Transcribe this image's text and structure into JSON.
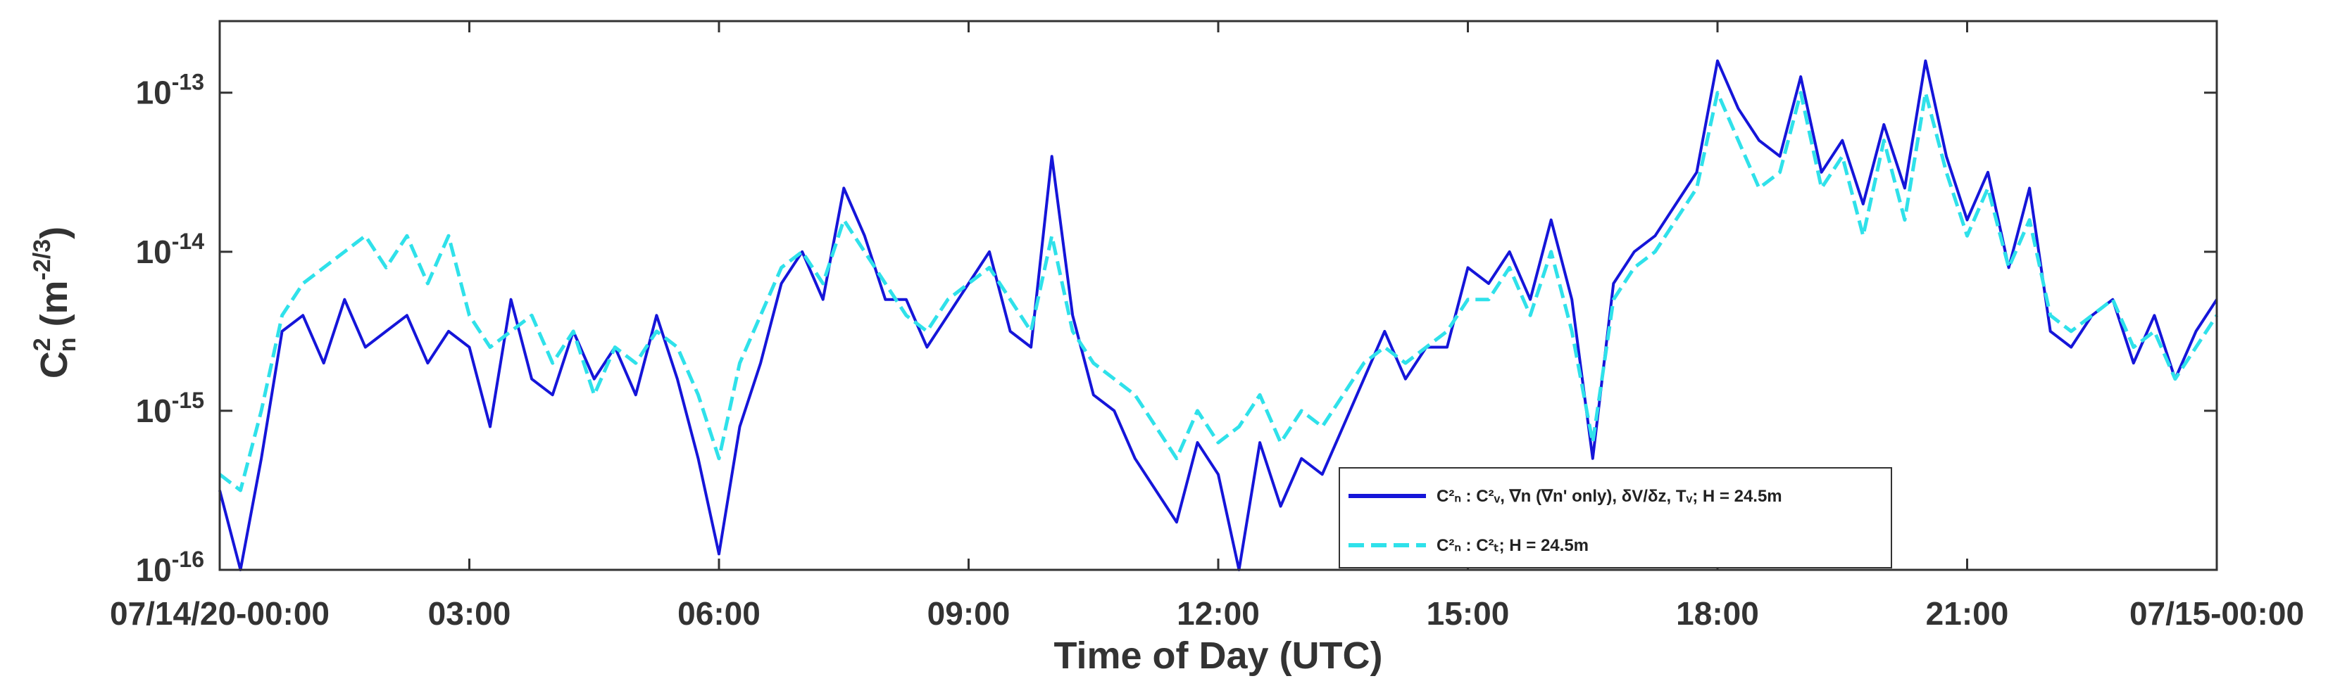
{
  "chart_data": {
    "type": "line",
    "title": "",
    "xlabel": "Time of Day (UTC)",
    "ylabel": {
      "base": "C",
      "sup": "2",
      "sub": "n",
      "unit": " (m",
      "unit_sup": "-2/3",
      "close": ")"
    },
    "yscale": "log",
    "ylim_exponent": [
      -16,
      -12.55
    ],
    "xlim_hours": [
      0,
      24
    ],
    "grid": false,
    "legend_position": "lower-right",
    "x_ticks": [
      {
        "hour": 0,
        "label": "07/14/20-00:00"
      },
      {
        "hour": 3,
        "label": "03:00"
      },
      {
        "hour": 6,
        "label": "06:00"
      },
      {
        "hour": 9,
        "label": "09:00"
      },
      {
        "hour": 12,
        "label": "12:00"
      },
      {
        "hour": 15,
        "label": "15:00"
      },
      {
        "hour": 18,
        "label": "18:00"
      },
      {
        "hour": 21,
        "label": "21:00"
      },
      {
        "hour": 24,
        "label": "07/15-00:00"
      }
    ],
    "y_ticks": [
      {
        "exponent": -16,
        "base": "10",
        "sup": "-16"
      },
      {
        "exponent": -15,
        "base": "10",
        "sup": "-15"
      },
      {
        "exponent": -14,
        "base": "10",
        "sup": "-14"
      },
      {
        "exponent": -13,
        "base": "10",
        "sup": "-13"
      }
    ],
    "series": [
      {
        "name": "Cn2 : Cv2, ∇n (∇n' only), δV/δz, Tv; H = 24.5m",
        "legend_label": "C²ₙ : C²ᵥ, ∇n (∇n' only), δV/δz, Tᵥ; H = 24.5m",
        "color": "#1515d9",
        "style": "solid",
        "x_hours": [
          0,
          0.25,
          0.5,
          0.75,
          1,
          1.25,
          1.5,
          1.75,
          2,
          2.25,
          2.5,
          2.75,
          3,
          3.25,
          3.5,
          3.75,
          4,
          4.25,
          4.5,
          4.75,
          5,
          5.25,
          5.5,
          5.75,
          6,
          6.25,
          6.5,
          6.75,
          7,
          7.25,
          7.5,
          7.75,
          8,
          8.25,
          8.5,
          8.75,
          9,
          9.25,
          9.5,
          9.75,
          10,
          10.25,
          10.5,
          10.75,
          11,
          11.25,
          11.5,
          11.75,
          12,
          12.25,
          12.5,
          12.75,
          13,
          13.25,
          13.5,
          13.75,
          14,
          14.25,
          14.5,
          14.75,
          15,
          15.25,
          15.5,
          15.75,
          16,
          16.25,
          16.5,
          16.75,
          17,
          17.25,
          17.5,
          17.75,
          18,
          18.25,
          18.5,
          18.75,
          19,
          19.25,
          19.5,
          19.75,
          20,
          20.25,
          20.5,
          20.75,
          21,
          21.25,
          21.5,
          21.75,
          22,
          22.25,
          22.5,
          22.75,
          23,
          23.25,
          23.5,
          23.75,
          24
        ],
        "log10_values": [
          -15.5,
          -16,
          -15.3,
          -14.5,
          -14.4,
          -14.7,
          -14.3,
          -14.6,
          -14.5,
          -14.4,
          -14.7,
          -14.5,
          -14.6,
          -15.1,
          -14.3,
          -14.8,
          -14.9,
          -14.5,
          -14.8,
          -14.6,
          -14.9,
          -14.4,
          -14.8,
          -15.3,
          -15.9,
          -15.1,
          -14.7,
          -14.2,
          -14.0,
          -14.3,
          -13.6,
          -13.9,
          -14.3,
          -14.3,
          -14.6,
          -14.4,
          -14.2,
          -14.0,
          -14.5,
          -14.6,
          -13.4,
          -14.4,
          -14.9,
          -15.0,
          -15.3,
          -15.5,
          -15.7,
          -15.2,
          -15.4,
          -16.0,
          -15.2,
          -15.6,
          -15.3,
          -15.4,
          -15.1,
          -14.8,
          -14.5,
          -14.8,
          -14.6,
          -14.6,
          -14.1,
          -14.2,
          -14.0,
          -14.3,
          -13.8,
          -14.3,
          -15.3,
          -14.2,
          -14.0,
          -13.9,
          -13.7,
          -13.5,
          -12.8,
          -13.1,
          -13.3,
          -13.4,
          -12.9,
          -13.5,
          -13.3,
          -13.7,
          -13.2,
          -13.6,
          -12.8,
          -13.4,
          -13.8,
          -13.5,
          -14.1,
          -13.6,
          -14.5,
          -14.6,
          -14.4,
          -14.3,
          -14.7,
          -14.4,
          -14.8,
          -14.5,
          -14.3
        ]
      },
      {
        "name": "Cn2 : CT2; H = 24.5m",
        "legend_label": "C²ₙ : C²ₜ; H = 24.5m",
        "color": "#2fe1ea",
        "style": "dashed",
        "x_hours": [
          0,
          0.25,
          0.5,
          0.75,
          1,
          1.25,
          1.5,
          1.75,
          2,
          2.25,
          2.5,
          2.75,
          3,
          3.25,
          3.5,
          3.75,
          4,
          4.25,
          4.5,
          4.75,
          5,
          5.25,
          5.5,
          5.75,
          6,
          6.25,
          6.5,
          6.75,
          7,
          7.25,
          7.5,
          7.75,
          8,
          8.25,
          8.5,
          8.75,
          9,
          9.25,
          9.5,
          9.75,
          10,
          10.25,
          10.5,
          10.75,
          11,
          11.25,
          11.5,
          11.75,
          12,
          12.25,
          12.5,
          12.75,
          13,
          13.25,
          13.5,
          13.75,
          14,
          14.25,
          14.5,
          14.75,
          15,
          15.25,
          15.5,
          15.75,
          16,
          16.25,
          16.5,
          16.75,
          17,
          17.25,
          17.5,
          17.75,
          18,
          18.25,
          18.5,
          18.75,
          19,
          19.25,
          19.5,
          19.75,
          20,
          20.25,
          20.5,
          20.75,
          21,
          21.25,
          21.5,
          21.75,
          22,
          22.25,
          22.5,
          22.75,
          23,
          23.25,
          23.5,
          23.75,
          24
        ],
        "log10_values": [
          -15.4,
          -15.5,
          -15.0,
          -14.4,
          -14.2,
          -14.1,
          -14.0,
          -13.9,
          -14.1,
          -13.9,
          -14.2,
          -13.9,
          -14.4,
          -14.6,
          -14.5,
          -14.4,
          -14.7,
          -14.5,
          -14.9,
          -14.6,
          -14.7,
          -14.5,
          -14.6,
          -14.9,
          -15.3,
          -14.7,
          -14.4,
          -14.1,
          -14.0,
          -14.2,
          -13.8,
          -14.0,
          -14.2,
          -14.4,
          -14.5,
          -14.3,
          -14.2,
          -14.1,
          -14.3,
          -14.5,
          -13.9,
          -14.5,
          -14.7,
          -14.8,
          -14.9,
          -15.1,
          -15.3,
          -15.0,
          -15.2,
          -15.1,
          -14.9,
          -15.2,
          -15.0,
          -15.1,
          -14.9,
          -14.7,
          -14.6,
          -14.7,
          -14.6,
          -14.5,
          -14.3,
          -14.3,
          -14.1,
          -14.4,
          -14.0,
          -14.5,
          -15.2,
          -14.3,
          -14.1,
          -14.0,
          -13.8,
          -13.6,
          -13.0,
          -13.3,
          -13.6,
          -13.5,
          -13.0,
          -13.6,
          -13.4,
          -13.9,
          -13.3,
          -13.8,
          -13.0,
          -13.5,
          -13.9,
          -13.6,
          -14.1,
          -13.8,
          -14.4,
          -14.5,
          -14.4,
          -14.3,
          -14.6,
          -14.5,
          -14.8,
          -14.6,
          -14.4
        ]
      }
    ]
  }
}
